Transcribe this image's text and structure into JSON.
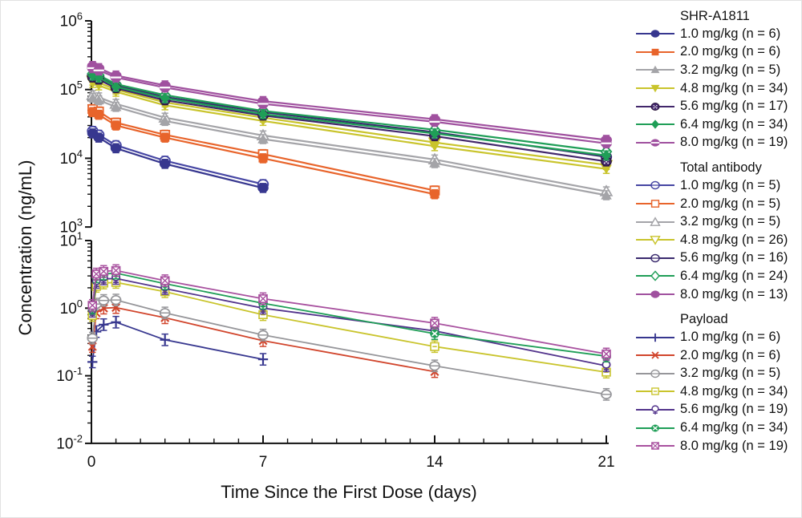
{
  "chart_data": {
    "type": "line",
    "title": "",
    "xlabel": "Time Since the First Dose (days)",
    "ylabel": "Concentration (ng/mL)",
    "x_scale": "linear",
    "y_scale": "log",
    "xlim": [
      0,
      21
    ],
    "x_ticks": [
      0,
      7,
      14,
      21
    ],
    "x_minor_tick_step_days": 1,
    "grid": false,
    "legend_position": "right",
    "panels": [
      {
        "name": "upper",
        "y_exponents": [
          6,
          5,
          4,
          3
        ],
        "y_range_ng_ml": [
          1000,
          1000000
        ]
      },
      {
        "name": "lower",
        "y_exponents": [
          1,
          0,
          -1,
          -2
        ],
        "y_range_ng_ml": [
          0.01,
          10
        ]
      }
    ],
    "groups": [
      {
        "title": "SHR-A1811",
        "panel": 0,
        "series": [
          {
            "label": "1.0 mg/kg (n = 6)",
            "dose_mg_kg": 1.0,
            "n": 6,
            "color": "#37378F",
            "marker": "circle",
            "x": [
              0.05,
              0.3,
              1,
              3,
              7
            ],
            "y": [
              23000,
              20000,
              14000,
              8300,
              3700
            ]
          },
          {
            "label": "2.0 mg/kg (n = 6)",
            "dose_mg_kg": 2.0,
            "n": 6,
            "color": "#E8642B",
            "marker": "square",
            "x": [
              0.05,
              0.3,
              1,
              3,
              7,
              14
            ],
            "y": [
              47000,
              43000,
              30000,
              20000,
              10000,
              3000
            ]
          },
          {
            "label": "3.2 mg/kg (n = 5)",
            "dose_mg_kg": 3.2,
            "n": 5,
            "color": "#A4A4A8",
            "marker": "triangle-up",
            "x": [
              0.05,
              0.3,
              1,
              3,
              7,
              14,
              21
            ],
            "y": [
              76000,
              70000,
              56000,
              35000,
              19000,
              8500,
              2900
            ]
          },
          {
            "label": "4.8 mg/kg (n = 34)",
            "dose_mg_kg": 4.8,
            "n": 34,
            "color": "#C9C42C",
            "marker": "triangle-down",
            "x": [
              0.05,
              0.3,
              1,
              3,
              7,
              14,
              21
            ],
            "y": [
              125000,
              115000,
              93000,
              59000,
              35000,
              15000,
              7000
            ]
          },
          {
            "label": "5.6 mg/kg (n = 17)",
            "dose_mg_kg": 5.6,
            "n": 17,
            "color": "#42276B",
            "marker": "circle-dots",
            "x": [
              0.05,
              0.3,
              1,
              3,
              7,
              14,
              21
            ],
            "y": [
              150000,
              140000,
              105000,
              70000,
              42000,
              21000,
              9000
            ]
          },
          {
            "label": "6.4 mg/kg (n = 34)",
            "dose_mg_kg": 6.4,
            "n": 34,
            "color": "#1F9E57",
            "marker": "diamond",
            "x": [
              0.05,
              0.3,
              1,
              3,
              7,
              14,
              21
            ],
            "y": [
              160000,
              150000,
              110000,
              75000,
              44000,
              23000,
              11000
            ]
          },
          {
            "label": "8.0 mg/kg (n = 19)",
            "dose_mg_kg": 8.0,
            "n": 19,
            "color": "#A0519F",
            "marker": "ellipse-stripe",
            "x": [
              0.05,
              0.3,
              1,
              3,
              7,
              14,
              21
            ],
            "y": [
              205000,
              190000,
              150000,
              107000,
              62000,
              34000,
              16500
            ]
          }
        ]
      },
      {
        "title": "Total antibody",
        "panel": 0,
        "series": [
          {
            "label": "1.0 mg/kg (n = 5)",
            "dose_mg_kg": 1.0,
            "n": 5,
            "color": "#4646A3",
            "marker": "circle-bar-open",
            "x": [
              0.05,
              0.3,
              1,
              3,
              7
            ],
            "y": [
              25000,
              22000,
              15500,
              9200,
              4200
            ]
          },
          {
            "label": "2.0 mg/kg (n = 5)",
            "dose_mg_kg": 2.0,
            "n": 5,
            "color": "#E8642B",
            "marker": "square-open",
            "x": [
              0.05,
              0.3,
              1,
              3,
              7,
              14
            ],
            "y": [
              52000,
              48000,
              33000,
              22000,
              11500,
              3400
            ]
          },
          {
            "label": "3.2 mg/kg (n = 5)",
            "dose_mg_kg": 3.2,
            "n": 5,
            "color": "#A4A4A8",
            "marker": "triangle-up-open",
            "x": [
              0.05,
              0.3,
              1,
              3,
              7,
              14,
              21
            ],
            "y": [
              83000,
              77000,
              62000,
              39000,
              21500,
              9600,
              3300
            ]
          },
          {
            "label": "4.8 mg/kg (n = 26)",
            "dose_mg_kg": 4.8,
            "n": 26,
            "color": "#C9C42C",
            "marker": "triangle-down-open",
            "x": [
              0.05,
              0.3,
              1,
              3,
              7,
              14,
              21
            ],
            "y": [
              135000,
              126000,
              100000,
              65000,
              39000,
              17000,
              8000
            ]
          },
          {
            "label": "5.6 mg/kg (n = 16)",
            "dose_mg_kg": 5.6,
            "n": 16,
            "color": "#3A2A6E",
            "marker": "circle-bar-open",
            "x": [
              0.05,
              0.3,
              1,
              3,
              7,
              14,
              21
            ],
            "y": [
              160000,
              150000,
              115000,
              78000,
              47000,
              24000,
              10500
            ]
          },
          {
            "label": "6.4 mg/kg (n = 24)",
            "dose_mg_kg": 6.4,
            "n": 24,
            "color": "#1F9E57",
            "marker": "diamond-open",
            "x": [
              0.05,
              0.3,
              1,
              3,
              7,
              14,
              21
            ],
            "y": [
              170000,
              162000,
              120000,
              83000,
              49000,
              26000,
              12500
            ]
          },
          {
            "label": "8.0 mg/kg (n = 13)",
            "dose_mg_kg": 8.0,
            "n": 13,
            "color": "#A0519F",
            "marker": "ellipse-filled",
            "x": [
              0.05,
              0.3,
              1,
              3,
              7,
              14,
              21
            ],
            "y": [
              220000,
              205000,
              160000,
              115000,
              68000,
              37000,
              18500
            ]
          }
        ]
      },
      {
        "title": "Payload",
        "panel": 1,
        "series": [
          {
            "label": "1.0 mg/kg (n = 6)",
            "dose_mg_kg": 1.0,
            "n": 6,
            "color": "#37378F",
            "marker": "plus",
            "x": [
              0.04,
              0.2,
              0.5,
              1,
              3,
              7
            ],
            "y": [
              0.16,
              0.45,
              0.57,
              0.62,
              0.34,
              0.175
            ]
          },
          {
            "label": "2.0 mg/kg (n = 6)",
            "dose_mg_kg": 2.0,
            "n": 6,
            "color": "#D1452C",
            "marker": "x-cross",
            "x": [
              0.04,
              0.2,
              0.5,
              1,
              3,
              7,
              14
            ],
            "y": [
              0.27,
              0.85,
              1.0,
              1.02,
              0.72,
              0.33,
              0.115
            ]
          },
          {
            "label": "3.2 mg/kg (n = 5)",
            "dose_mg_kg": 3.2,
            "n": 5,
            "color": "#96969A",
            "marker": "circle-bar-open",
            "x": [
              0.04,
              0.2,
              0.5,
              1,
              3,
              7,
              14,
              21
            ],
            "y": [
              0.36,
              1.15,
              1.3,
              1.32,
              0.85,
              0.4,
              0.14,
              0.053
            ]
          },
          {
            "label": "4.8 mg/kg (n = 34)",
            "dose_mg_kg": 4.8,
            "n": 34,
            "color": "#C9C42C",
            "marker": "square-dash-open",
            "x": [
              0.04,
              0.2,
              0.5,
              1,
              3,
              7,
              14,
              21
            ],
            "y": [
              0.78,
              2.1,
              2.35,
              2.4,
              1.75,
              0.8,
              0.27,
              0.113
            ]
          },
          {
            "label": "5.6 mg/kg (n = 19)",
            "dose_mg_kg": 5.6,
            "n": 19,
            "color": "#53348C",
            "marker": "circle-plus",
            "x": [
              0.04,
              0.2,
              0.5,
              1,
              3,
              7,
              14,
              21
            ],
            "y": [
              0.9,
              2.4,
              2.7,
              2.75,
              1.95,
              1.0,
              0.46,
              0.14
            ]
          },
          {
            "label": "6.4 mg/kg (n = 34)",
            "dose_mg_kg": 6.4,
            "n": 34,
            "color": "#1F9E57",
            "marker": "circle-x-filled",
            "x": [
              0.04,
              0.2,
              0.5,
              1,
              3,
              7,
              14,
              21
            ],
            "y": [
              1.0,
              2.9,
              3.2,
              3.3,
              2.3,
              1.18,
              0.42,
              0.195
            ]
          },
          {
            "label": "8.0 mg/kg (n = 19)",
            "dose_mg_kg": 8.0,
            "n": 19,
            "color": "#A8519F",
            "marker": "square-x-open",
            "x": [
              0.04,
              0.2,
              0.5,
              1,
              3,
              7,
              14,
              21
            ],
            "y": [
              1.1,
              3.2,
              3.5,
              3.6,
              2.55,
              1.38,
              0.6,
              0.21
            ]
          }
        ]
      }
    ]
  }
}
